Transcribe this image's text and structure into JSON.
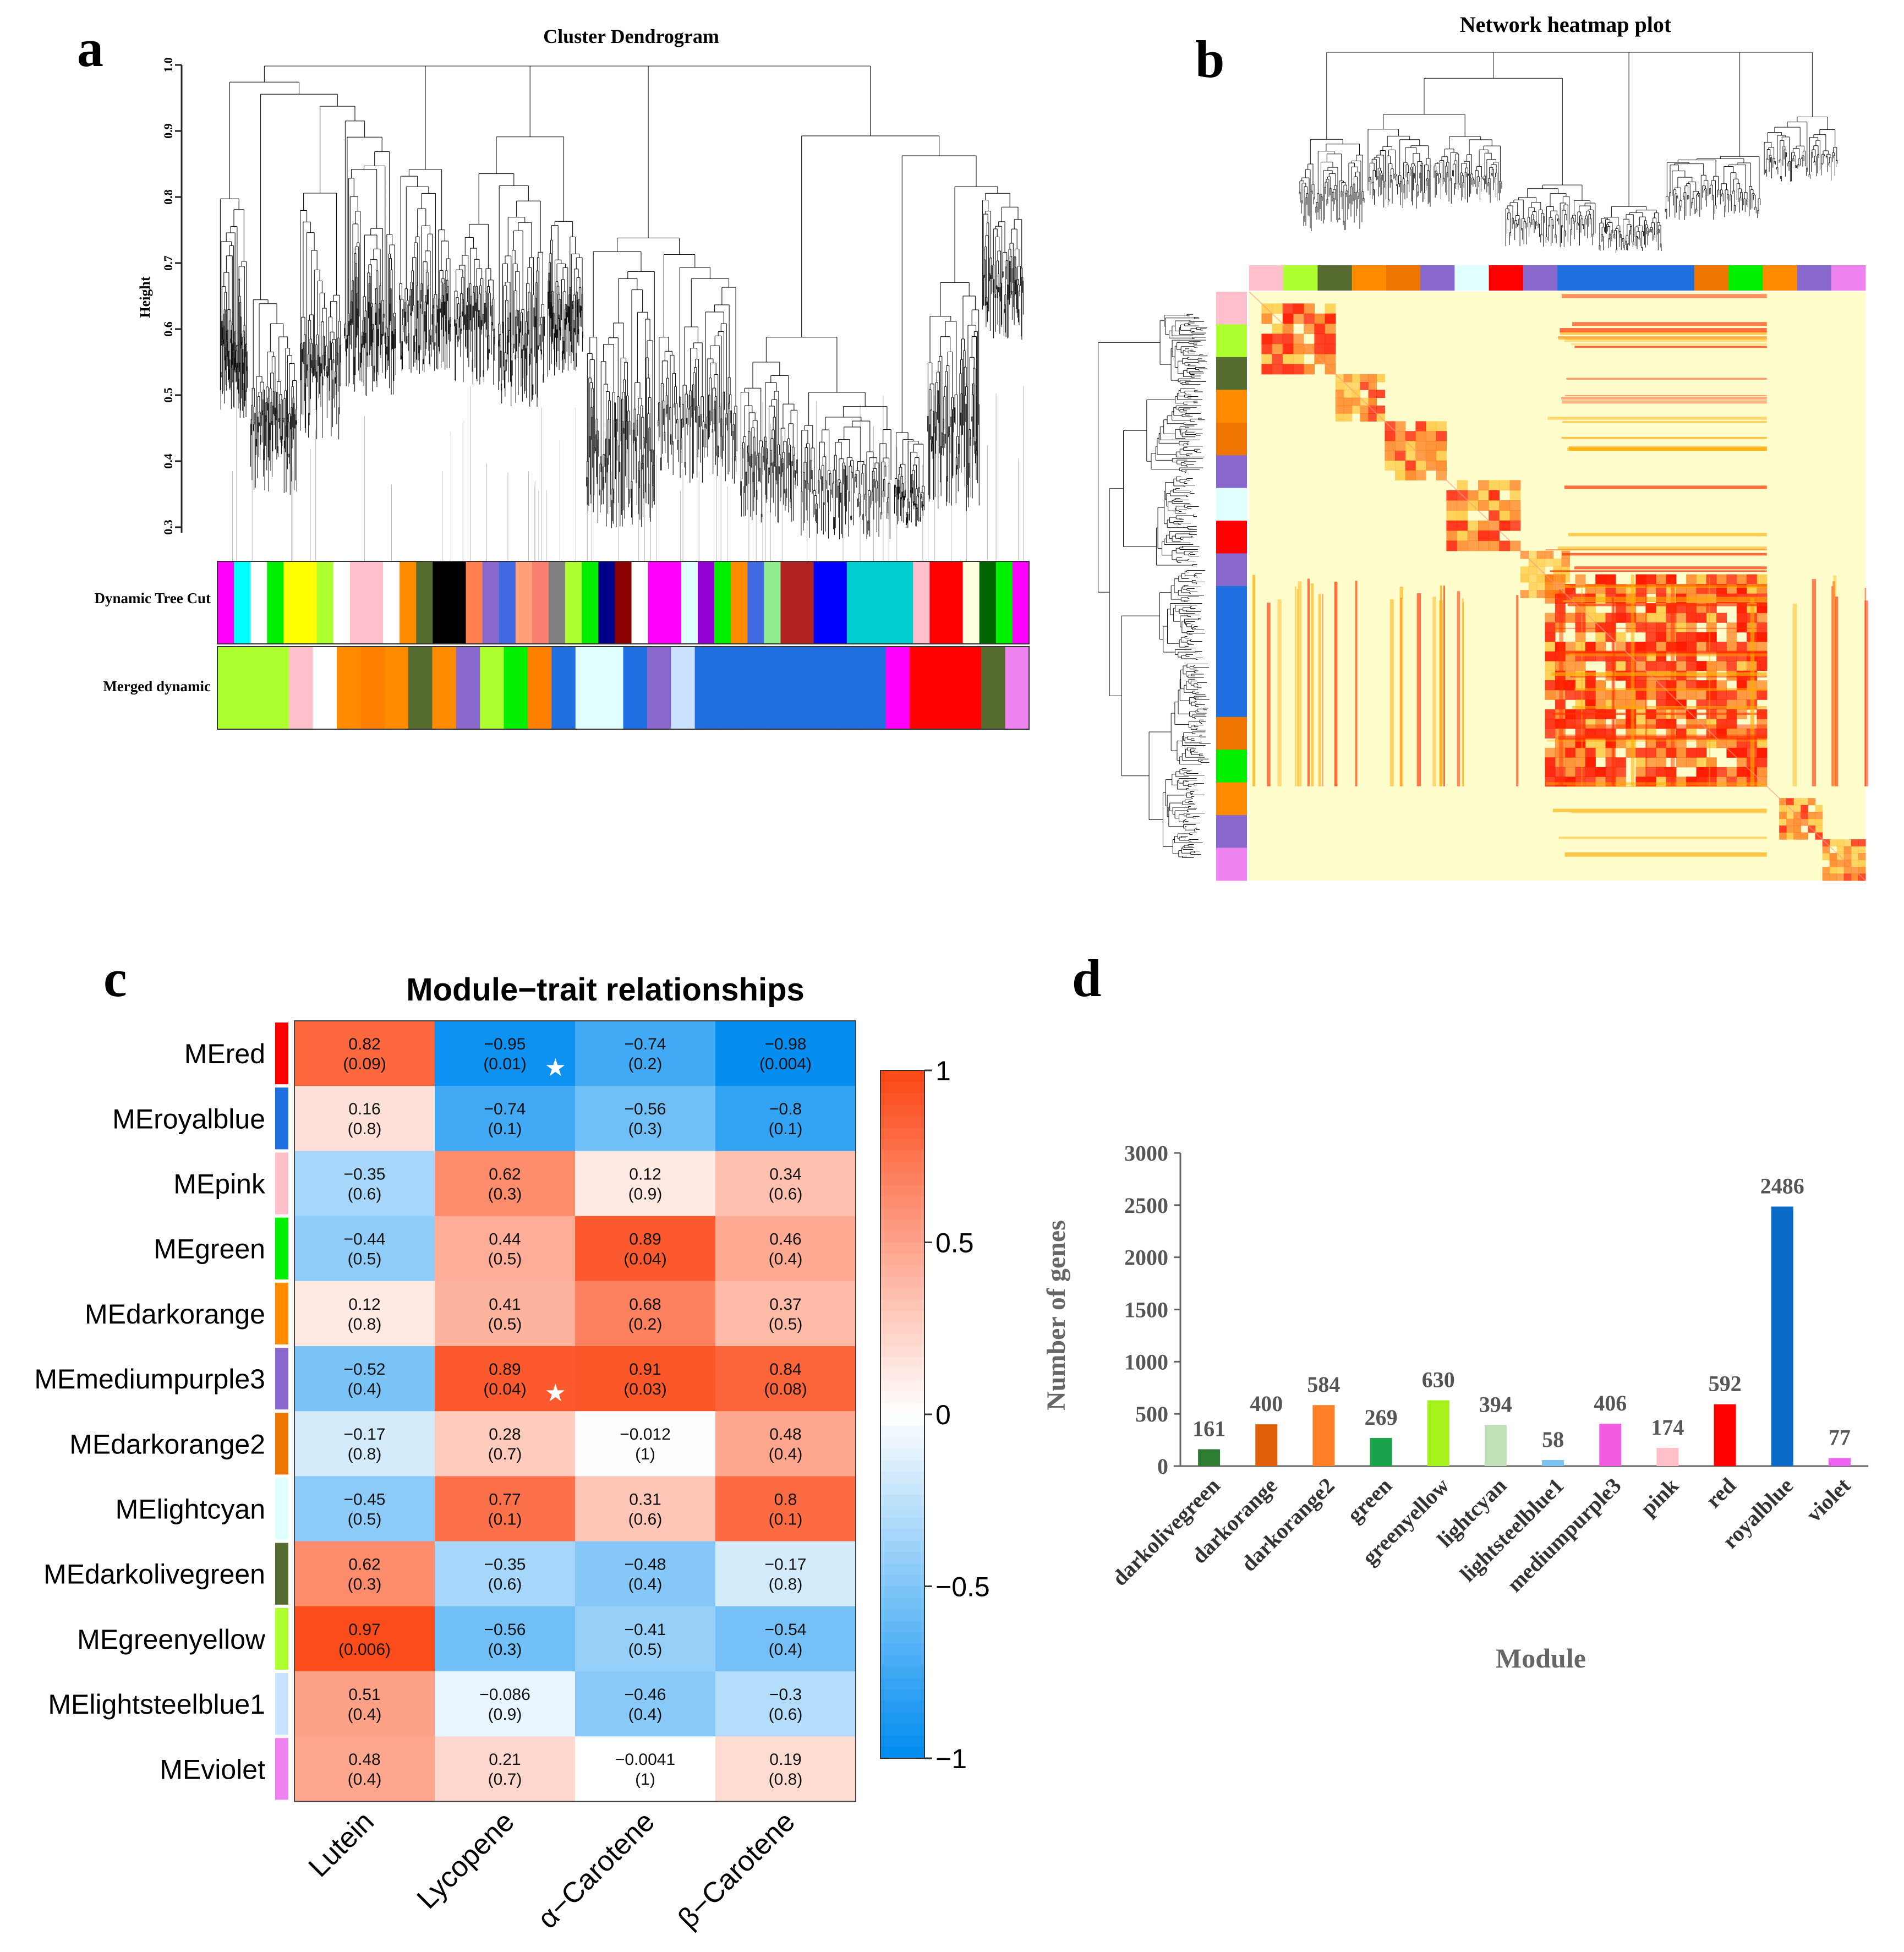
{
  "panels": {
    "a": {
      "letter": "a",
      "title": "Cluster Dendrogram",
      "ylabel": "Height",
      "yticks": [
        "1.0",
        "0.9",
        "0.8",
        "0.7",
        "0.6",
        "0.5",
        "0.4",
        "0.3"
      ],
      "row1": "Dynamic Tree Cut",
      "row2": "Merged dynamic"
    },
    "b": {
      "letter": "b",
      "title": "Network heatmap plot"
    },
    "c": {
      "letter": "c"
    },
    "d": {
      "letter": "d"
    }
  },
  "colors": {
    "heat_low": "#fffdcc",
    "heat_high": "#ff1a00",
    "red": "#ff0000",
    "royalblue": "#1f6fe0",
    "pink": "#ffc0cb",
    "green": "#00ee00",
    "darkorange": "#ff8c00",
    "mediumpurple3": "#8968cd",
    "darkorange2": "#ee7600",
    "lightcyan": "#e0ffff",
    "darkolivegreen": "#556b2f",
    "greenyellow": "#adff2f",
    "lightsteelblue1": "#cae1ff",
    "violet": "#ee82ee"
  },
  "dyn_colors": [
    "#ff00ff",
    "#00ffff",
    "#ffffff",
    "#00ee00",
    "#ffff00",
    "#ffff00",
    "#adff2f",
    "#ffffff",
    "#ffc0cb",
    "#ffc0cb",
    "#ffffff",
    "#ff8c00",
    "#556b2f",
    "#000000",
    "#000000",
    "#ff7f50",
    "#8968cd",
    "#4169e1",
    "#ffa07a",
    "#fa8072",
    "#808080",
    "#adff2f",
    "#00ee00",
    "#00008b",
    "#8b0000",
    "#ffffff",
    "#ff00ff",
    "#ff00ff",
    "#e0ffff",
    "#9400d3",
    "#00ee00",
    "#ff8c00",
    "#4169e1",
    "#90ee90",
    "#b22222",
    "#b22222",
    "#0000ff",
    "#0000ff",
    "#00ced1",
    "#00ced1",
    "#00ced1",
    "#00ced1",
    "#ffc0cb",
    "#ff0000",
    "#ff0000",
    "#ffffe0",
    "#006400",
    "#00ee00",
    "#ff00ff"
  ],
  "merged_colors": [
    "#adff2f",
    "#adff2f",
    "#adff2f",
    "#ffc0cb",
    "#ffffff",
    "#ff8c00",
    "#ff7f00",
    "#ff8c00",
    "#556b2f",
    "#ff8c00",
    "#8968cd",
    "#adff2f",
    "#00ee00",
    "#ff7f00",
    "#1f6fe0",
    "#e0ffff",
    "#e0ffff",
    "#1f6fe0",
    "#8968cd",
    "#cae1ff",
    "#1f6fe0",
    "#1f6fe0",
    "#1f6fe0",
    "#1f6fe0",
    "#1f6fe0",
    "#1f6fe0",
    "#1f6fe0",
    "#1f6fe0",
    "#ff00ff",
    "#ff0000",
    "#ff0000",
    "#ff0000",
    "#556b2f",
    "#ee82ee"
  ],
  "heatmap_block_colors": [
    "#ffc0cb",
    "#adff2f",
    "#556b2f",
    "#ff8c00",
    "#ee7600",
    "#8968cd",
    "#e0ffff",
    "#ff0000",
    "#8968cd",
    "#1f6fe0",
    "#1f6fe0",
    "#1f6fe0",
    "#1f6fe0",
    "#ee7600",
    "#00ee00",
    "#ff8c00",
    "#8968cd",
    "#ee82ee"
  ],
  "module_trait": {
    "title": "Module−trait relationships",
    "modules": [
      "MEred",
      "MEroyalblue",
      "MEpink",
      "MEgreen",
      "MEdarkorange",
      "MEmediumpurple3",
      "MEdarkorange2",
      "MElightcyan",
      "MEdarkolivegreen",
      "MEgreenyellow",
      "MElightsteelblue1",
      "MEviolet"
    ],
    "module_keys": [
      "red",
      "royalblue",
      "pink",
      "green",
      "darkorange",
      "mediumpurple3",
      "darkorange2",
      "lightcyan",
      "darkolivegreen",
      "greenyellow",
      "lightsteelblue1",
      "violet"
    ],
    "traits": [
      "Lutein",
      "Lycopene",
      "α−Carotene",
      "β−Carotene"
    ],
    "cor": [
      [
        0.82,
        -0.95,
        -0.74,
        -0.98
      ],
      [
        0.16,
        -0.74,
        -0.56,
        -0.8
      ],
      [
        -0.35,
        0.62,
        0.12,
        0.34
      ],
      [
        -0.44,
        0.44,
        0.89,
        0.46
      ],
      [
        0.12,
        0.41,
        0.68,
        0.37
      ],
      [
        -0.52,
        0.89,
        0.91,
        0.84
      ],
      [
        -0.17,
        0.28,
        -0.012,
        0.48
      ],
      [
        -0.45,
        0.77,
        0.31,
        0.8
      ],
      [
        0.62,
        -0.35,
        -0.48,
        -0.17
      ],
      [
        0.97,
        -0.56,
        -0.41,
        -0.54
      ],
      [
        0.51,
        -0.086,
        -0.46,
        -0.3
      ],
      [
        0.48,
        0.21,
        -0.0041,
        0.19
      ]
    ],
    "cor_text": [
      [
        "0.82",
        "−0.95",
        "−0.74",
        "−0.98"
      ],
      [
        "0.16",
        "−0.74",
        "−0.56",
        "−0.8"
      ],
      [
        "−0.35",
        "0.62",
        "0.12",
        "0.34"
      ],
      [
        "−0.44",
        "0.44",
        "0.89",
        "0.46"
      ],
      [
        "0.12",
        "0.41",
        "0.68",
        "0.37"
      ],
      [
        "−0.52",
        "0.89",
        "0.91",
        "0.84"
      ],
      [
        "−0.17",
        "0.28",
        "−0.012",
        "0.48"
      ],
      [
        "−0.45",
        "0.77",
        "0.31",
        "0.8"
      ],
      [
        "0.62",
        "−0.35",
        "−0.48",
        "−0.17"
      ],
      [
        "0.97",
        "−0.56",
        "−0.41",
        "−0.54"
      ],
      [
        "0.51",
        "−0.086",
        "−0.46",
        "−0.3"
      ],
      [
        "0.48",
        "0.21",
        "−0.0041",
        "0.19"
      ]
    ],
    "pval_text": [
      [
        "(0.09)",
        "(0.01)",
        "(0.2)",
        "(0.004)"
      ],
      [
        "(0.8)",
        "(0.1)",
        "(0.3)",
        "(0.1)"
      ],
      [
        "(0.6)",
        "(0.3)",
        "(0.9)",
        "(0.6)"
      ],
      [
        "(0.5)",
        "(0.5)",
        "(0.04)",
        "(0.4)"
      ],
      [
        "(0.8)",
        "(0.5)",
        "(0.2)",
        "(0.5)"
      ],
      [
        "(0.4)",
        "(0.04)",
        "(0.03)",
        "(0.08)"
      ],
      [
        "(0.8)",
        "(0.7)",
        "(1)",
        "(0.4)"
      ],
      [
        "(0.5)",
        "(0.1)",
        "(0.6)",
        "(0.1)"
      ],
      [
        "(0.3)",
        "(0.6)",
        "(0.4)",
        "(0.8)"
      ],
      [
        "(0.006)",
        "(0.3)",
        "(0.5)",
        "(0.4)"
      ],
      [
        "(0.4)",
        "(0.9)",
        "(0.4)",
        "(0.6)"
      ],
      [
        "(0.4)",
        "(0.7)",
        "(1)",
        "(0.8)"
      ]
    ],
    "stars": [
      [
        0,
        1
      ],
      [
        5,
        1
      ]
    ],
    "star_glyph": "★",
    "legend_ticks": [
      "1",
      "0.5",
      "0",
      "−0.5",
      "−1"
    ],
    "legend_values": [
      1,
      0.5,
      0,
      -0.5,
      -1
    ]
  },
  "chart_data": [
    {
      "type": "heatmap",
      "title": "Module−trait relationships",
      "rows": [
        "MEred",
        "MEroyalblue",
        "MEpink",
        "MEgreen",
        "MEdarkorange",
        "MEmediumpurple3",
        "MEdarkorange2",
        "MElightcyan",
        "MEdarkolivegreen",
        "MEgreenyellow",
        "MElightsteelblue1",
        "MEviolet"
      ],
      "columns": [
        "Lutein",
        "Lycopene",
        "α−Carotene",
        "β−Carotene"
      ],
      "zlim": [
        -1,
        1
      ]
    },
    {
      "type": "bar",
      "categories": [
        "darkolivegreen",
        "darkorange",
        "darkorange2",
        "green",
        "greenyellow",
        "lightcyan",
        "lightsteelblue1",
        "mediumpurple3",
        "pink",
        "red",
        "royalblue",
        "violet"
      ],
      "values": [
        161,
        400,
        584,
        269,
        630,
        394,
        58,
        406,
        174,
        592,
        2486,
        77
      ],
      "labels": [
        "161",
        "400",
        "584",
        "269",
        "630",
        "394",
        "58",
        "406",
        "174",
        "592",
        "2486",
        "77"
      ],
      "bar_colors": [
        "#2e7d32",
        "#e0600a",
        "#ff7f27",
        "#1aa34a",
        "#a6f21c",
        "#c0e0b8",
        "#7cc4f0",
        "#f25ce0",
        "#ffc0c8",
        "#ff0000",
        "#0a6ac8",
        "#f060f0"
      ],
      "xlabel": "Module",
      "ylabel": "Number of genes",
      "ylim": [
        0,
        3000
      ],
      "yticks": [
        0,
        500,
        1000,
        1500,
        2000,
        2500,
        3000
      ],
      "ytick_labels": [
        "0",
        "500",
        "1000",
        "1500",
        "2000",
        "2500",
        "3000"
      ]
    }
  ]
}
